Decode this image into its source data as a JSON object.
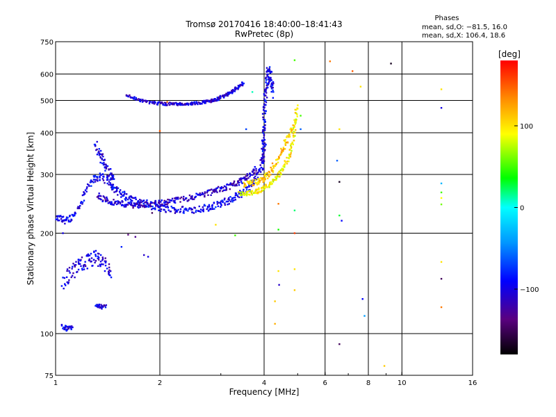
{
  "chart_data": {
    "type": "scatter",
    "title_line1": "Tromsø 20170416 18:40:00–18:41:43",
    "title_line2": "RwPretec (8p)",
    "xlabel": "Frequency [MHz]",
    "ylabel": "Stationary phase Virtual Height [km]",
    "x_scale": "log",
    "y_scale": "log",
    "xlim": [
      1,
      16
    ],
    "ylim": [
      75,
      750
    ],
    "x_ticks": [
      "1",
      "2",
      "4",
      "6",
      "8",
      "10",
      "16"
    ],
    "x_grid": [
      2,
      4,
      6,
      8,
      10
    ],
    "y_ticks": [
      "75",
      "100",
      "200",
      "300",
      "400",
      "500",
      "600",
      "750"
    ],
    "y_grid": [
      100,
      200,
      300,
      400,
      500,
      600
    ],
    "grid": true,
    "stats": {
      "title": "Phases",
      "line1": "mean, sd,O: −81.5, 16.0",
      "line2": "mean, sd,X: 106.4, 18.6"
    },
    "colorbar": {
      "label": "[deg]",
      "range": [
        -180,
        180
      ],
      "ticks": [
        "100",
        "0",
        "−100"
      ],
      "tick_values": [
        100,
        0,
        -100
      ]
    },
    "traces": [
      {
        "x": [
          1.0,
          1.04,
          1.08,
          1.12,
          1.18,
          1.24,
          1.3,
          1.36,
          1.42,
          1.48,
          1.55,
          1.62,
          1.7,
          1.8,
          1.9,
          2.0,
          2.1,
          2.25,
          2.4,
          2.55,
          2.7,
          2.85,
          3.0,
          3.15,
          3.3,
          3.45,
          3.6,
          3.75,
          3.88,
          3.98,
          4.04
        ],
        "y": [
          222,
          220,
          218,
          225,
          245,
          275,
          292,
          295,
          285,
          272,
          262,
          256,
          250,
          246,
          241,
          238,
          236,
          235,
          235,
          236,
          238,
          241,
          245,
          250,
          256,
          263,
          272,
          288,
          310,
          345,
          390
        ],
        "jitter": 0.05,
        "phase": -95
      },
      {
        "x": [
          1.32,
          1.38,
          1.45,
          1.52,
          1.6,
          1.68,
          1.76,
          1.85,
          1.95,
          2.05,
          2.15,
          2.3,
          2.45,
          2.6,
          2.75,
          2.9,
          3.05,
          3.2,
          3.35,
          3.5,
          3.65,
          3.8
        ],
        "y": [
          260,
          252,
          248,
          246,
          244,
          243,
          243,
          244,
          245,
          247,
          249,
          252,
          256,
          260,
          264,
          268,
          273,
          278,
          283,
          290,
          300,
          315
        ],
        "jitter": 0.04,
        "phase": -110
      },
      {
        "x": [
          1.3,
          1.34,
          1.38,
          1.42,
          1.46,
          1.5
        ],
        "y": [
          370,
          345,
          325,
          305,
          290,
          275
        ],
        "jitter": 0.07,
        "phase": -100
      },
      {
        "x": [
          1.05,
          1.1,
          1.15,
          1.2,
          1.25,
          1.3,
          1.35,
          1.4,
          1.45
        ],
        "y": [
          140,
          150,
          158,
          162,
          165,
          168,
          165,
          160,
          152
        ],
        "jitter": 0.11,
        "phase": -105
      },
      {
        "x": [
          1.05,
          1.08,
          1.12
        ],
        "y": [
          105,
          103,
          104
        ],
        "jitter": 0.03,
        "phase": -100
      },
      {
        "x": [
          1.3,
          1.35,
          1.4
        ],
        "y": [
          122,
          120,
          121
        ],
        "jitter": 0.03,
        "phase": -100
      },
      {
        "x": [
          1.6,
          1.7,
          1.8,
          1.9,
          2.0,
          2.1,
          2.2,
          2.3,
          2.4,
          2.5,
          2.6,
          2.7,
          2.8,
          2.9,
          3.0,
          3.1,
          3.2,
          3.3,
          3.4,
          3.5
        ],
        "y": [
          520,
          505,
          498,
          492,
          490,
          488,
          488,
          488,
          489,
          490,
          492,
          495,
          498,
          503,
          510,
          518,
          528,
          540,
          552,
          565
        ],
        "jitter": 0.02,
        "phase": -105
      },
      {
        "x": [
          3.95,
          3.97,
          3.99,
          4.01,
          4.03,
          4.05,
          4.08,
          4.12,
          4.16,
          4.2,
          4.25
        ],
        "y": [
          310,
          350,
          400,
          450,
          500,
          540,
          580,
          610,
          590,
          560,
          520
        ],
        "jitter": 0.1,
        "phase": -95
      },
      {
        "x": [
          3.4,
          3.55,
          3.7,
          3.85,
          4.0,
          4.15,
          4.3,
          4.45,
          4.6,
          4.75,
          4.85,
          4.92,
          4.97
        ],
        "y": [
          262,
          263,
          265,
          268,
          273,
          280,
          290,
          303,
          320,
          345,
          380,
          430,
          480
        ],
        "jitter": 0.03,
        "phase": 95
      },
      {
        "x": [
          3.5,
          3.65,
          3.8,
          3.95,
          4.1,
          4.25,
          4.4,
          4.55,
          4.7,
          4.85
        ],
        "y": [
          280,
          282,
          285,
          290,
          300,
          315,
          335,
          360,
          390,
          420
        ],
        "jitter": 0.04,
        "phase": 110
      }
    ],
    "scatter_points": [
      {
        "x": 1.62,
        "y": 198,
        "phase": -140
      },
      {
        "x": 1.7,
        "y": 195,
        "phase": -130
      },
      {
        "x": 1.8,
        "y": 172,
        "phase": -110
      },
      {
        "x": 1.85,
        "y": 170,
        "phase": -100
      },
      {
        "x": 2.9,
        "y": 212,
        "phase": 100
      },
      {
        "x": 3.3,
        "y": 197,
        "phase": 50
      },
      {
        "x": 4.3,
        "y": 125,
        "phase": 110
      },
      {
        "x": 4.3,
        "y": 107,
        "phase": 120
      },
      {
        "x": 4.4,
        "y": 245,
        "phase": 140
      },
      {
        "x": 4.4,
        "y": 205,
        "phase": 40
      },
      {
        "x": 4.4,
        "y": 154,
        "phase": 100
      },
      {
        "x": 4.42,
        "y": 140,
        "phase": -110
      },
      {
        "x": 4.9,
        "y": 660,
        "phase": 50
      },
      {
        "x": 4.9,
        "y": 234,
        "phase": 20
      },
      {
        "x": 4.9,
        "y": 200,
        "phase": 160
      },
      {
        "x": 4.9,
        "y": 156,
        "phase": 100
      },
      {
        "x": 4.9,
        "y": 135,
        "phase": 110
      },
      {
        "x": 5.1,
        "y": 450,
        "phase": 50
      },
      {
        "x": 5.1,
        "y": 410,
        "phase": -60
      },
      {
        "x": 6.2,
        "y": 655,
        "phase": 140
      },
      {
        "x": 6.5,
        "y": 330,
        "phase": -60
      },
      {
        "x": 6.6,
        "y": 410,
        "phase": 100
      },
      {
        "x": 6.6,
        "y": 285,
        "phase": -170
      },
      {
        "x": 6.6,
        "y": 226,
        "phase": 30
      },
      {
        "x": 6.7,
        "y": 218,
        "phase": -90
      },
      {
        "x": 6.6,
        "y": 93,
        "phase": -150
      },
      {
        "x": 7.2,
        "y": 612,
        "phase": 150
      },
      {
        "x": 7.6,
        "y": 550,
        "phase": 100
      },
      {
        "x": 7.7,
        "y": 127,
        "phase": -90
      },
      {
        "x": 7.8,
        "y": 113,
        "phase": -40
      },
      {
        "x": 8.9,
        "y": 80,
        "phase": 110
      },
      {
        "x": 9.3,
        "y": 645,
        "phase": -170
      },
      {
        "x": 13.0,
        "y": 540,
        "phase": 100
      },
      {
        "x": 13.0,
        "y": 475,
        "phase": -100
      },
      {
        "x": 13.0,
        "y": 282,
        "phase": -30
      },
      {
        "x": 13.0,
        "y": 265,
        "phase": 50
      },
      {
        "x": 13.0,
        "y": 255,
        "phase": 90
      },
      {
        "x": 13.0,
        "y": 244,
        "phase": 60
      },
      {
        "x": 13.0,
        "y": 164,
        "phase": 100
      },
      {
        "x": 13.0,
        "y": 146,
        "phase": -150
      },
      {
        "x": 13.0,
        "y": 120,
        "phase": 140
      },
      {
        "x": 1.05,
        "y": 200,
        "phase": -100
      },
      {
        "x": 1.55,
        "y": 182,
        "phase": -80
      },
      {
        "x": 1.9,
        "y": 230,
        "phase": -150
      },
      {
        "x": 2.0,
        "y": 405,
        "phase": 150
      },
      {
        "x": 2.1,
        "y": 495,
        "phase": 140
      },
      {
        "x": 3.55,
        "y": 410,
        "phase": -70
      },
      {
        "x": 3.7,
        "y": 530,
        "phase": 10
      }
    ]
  }
}
